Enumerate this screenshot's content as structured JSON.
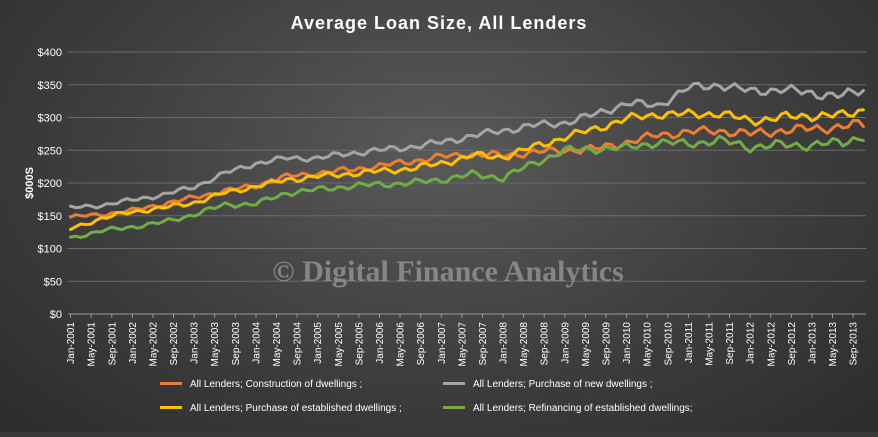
{
  "chart_data": {
    "type": "line",
    "title": "Average Loan Size, All Lenders",
    "ylabel": "$000S",
    "xlabel": "",
    "ylim": [
      0,
      400
    ],
    "y_ticks": [
      "$0",
      "$50",
      "$100",
      "$150",
      "$200",
      "$250",
      "$300",
      "$350",
      "$400"
    ],
    "x_start": "Jan-2001",
    "x_end": "Nov-2013",
    "x_tick_labels": [
      "Jan-2001",
      "May-2001",
      "Sep-2001",
      "Jan-2002",
      "May-2002",
      "Sep-2002",
      "Jan-2003",
      "May-2003",
      "Sep-2003",
      "Jan-2004",
      "May-2004",
      "Sep-2004",
      "Jan-2005",
      "May-2005",
      "Sep-2005",
      "Jan-2006",
      "May-2006",
      "Sep-2006",
      "Jan-2007",
      "May-2007",
      "Sep-2007",
      "Jan-2008",
      "May-2008",
      "Sep-2008",
      "Jan-2009",
      "May-2009",
      "Sep-2009",
      "Jan-2010",
      "May-2010",
      "Sep-2010",
      "Jan-2011",
      "May-2011",
      "Sep-2011",
      "Jan-2012",
      "May-2012",
      "Sep-2012",
      "Jan-2013",
      "May-2013",
      "Sep-2013"
    ],
    "grid": true,
    "legend_position": "bottom",
    "watermark": "© Digital Finance Analytics",
    "series": [
      {
        "name": "All Lenders;  Construction of dwellings ;",
        "color": "#ed7d31",
        "knots": [
          [
            "Jan-2001",
            148
          ],
          [
            "Jul-2001",
            152
          ],
          [
            "Jan-2002",
            158
          ],
          [
            "Jul-2002",
            168
          ],
          [
            "Jan-2003",
            178
          ],
          [
            "Jul-2003",
            188
          ],
          [
            "Jan-2004",
            196
          ],
          [
            "Jul-2004",
            210
          ],
          [
            "Jan-2005",
            215
          ],
          [
            "Jul-2005",
            220
          ],
          [
            "Jan-2006",
            226
          ],
          [
            "Jul-2006",
            233
          ],
          [
            "Jan-2007",
            240
          ],
          [
            "Jul-2007",
            244
          ],
          [
            "Jan-2008",
            242
          ],
          [
            "Jul-2008",
            247
          ],
          [
            "Jan-2009",
            250
          ],
          [
            "Jul-2009",
            252
          ],
          [
            "Jan-2010",
            262
          ],
          [
            "Jul-2010",
            273
          ],
          [
            "Jan-2011",
            278
          ],
          [
            "Jul-2011",
            280
          ],
          [
            "Jan-2012",
            275
          ],
          [
            "Jul-2012",
            280
          ],
          [
            "Jan-2013",
            283
          ],
          [
            "Jul-2013",
            286
          ],
          [
            "Nov-2013",
            290
          ]
        ]
      },
      {
        "name": "All Lenders;  Purchase of new dwellings ;",
        "color": "#a5a5a5",
        "knots": [
          [
            "Jan-2001",
            162
          ],
          [
            "Jul-2001",
            166
          ],
          [
            "Jan-2002",
            174
          ],
          [
            "Jul-2002",
            182
          ],
          [
            "Jan-2003",
            194
          ],
          [
            "Jul-2003",
            215
          ],
          [
            "Jan-2004",
            230
          ],
          [
            "Jul-2004",
            238
          ],
          [
            "Jan-2005",
            238
          ],
          [
            "Jul-2005",
            245
          ],
          [
            "Jan-2006",
            250
          ],
          [
            "Jul-2006",
            255
          ],
          [
            "Jan-2007",
            262
          ],
          [
            "Jul-2007",
            272
          ],
          [
            "Jan-2008",
            280
          ],
          [
            "Jul-2008",
            288
          ],
          [
            "Jan-2009",
            292
          ],
          [
            "Jul-2009",
            305
          ],
          [
            "Jan-2010",
            322
          ],
          [
            "Jul-2010",
            318
          ],
          [
            "Jan-2011",
            345
          ],
          [
            "Jul-2011",
            350
          ],
          [
            "Jan-2012",
            340
          ],
          [
            "Jul-2012",
            343
          ],
          [
            "Jan-2013",
            337
          ],
          [
            "Jul-2013",
            333
          ],
          [
            "Nov-2013",
            342
          ]
        ]
      },
      {
        "name": "All Lenders;  Purchase of established dwellings ;",
        "color": "#ffc000",
        "knots": [
          [
            "Jan-2001",
            130
          ],
          [
            "Jul-2001",
            146
          ],
          [
            "Jan-2002",
            156
          ],
          [
            "Jul-2002",
            162
          ],
          [
            "Jan-2003",
            170
          ],
          [
            "Jul-2003",
            185
          ],
          [
            "Jan-2004",
            195
          ],
          [
            "Jul-2004",
            205
          ],
          [
            "Jan-2005",
            210
          ],
          [
            "Jul-2005",
            214
          ],
          [
            "Jan-2006",
            218
          ],
          [
            "Jul-2006",
            222
          ],
          [
            "Jan-2007",
            230
          ],
          [
            "Jul-2007",
            242
          ],
          [
            "Jan-2008",
            240
          ],
          [
            "Jul-2008",
            255
          ],
          [
            "Jan-2009",
            270
          ],
          [
            "Jul-2009",
            283
          ],
          [
            "Jan-2010",
            298
          ],
          [
            "Jul-2010",
            305
          ],
          [
            "Jan-2011",
            305
          ],
          [
            "Jul-2011",
            306
          ],
          [
            "Jan-2012",
            295
          ],
          [
            "Jul-2012",
            300
          ],
          [
            "Jan-2013",
            303
          ],
          [
            "Jul-2013",
            303
          ],
          [
            "Nov-2013",
            312
          ]
        ]
      },
      {
        "name": "All Lenders;  Refinancing of established dwellings;",
        "color": "#70ad47",
        "knots": [
          [
            "Jan-2001",
            116
          ],
          [
            "Jul-2001",
            127
          ],
          [
            "Jan-2002",
            133
          ],
          [
            "Jul-2002",
            140
          ],
          [
            "Jan-2003",
            152
          ],
          [
            "Jul-2003",
            167
          ],
          [
            "Jan-2004",
            168
          ],
          [
            "Jul-2004",
            185
          ],
          [
            "Jan-2005",
            190
          ],
          [
            "Jul-2005",
            195
          ],
          [
            "Jan-2006",
            198
          ],
          [
            "Jul-2006",
            200
          ],
          [
            "Jan-2007",
            205
          ],
          [
            "Jul-2007",
            213
          ],
          [
            "Jan-2008",
            208
          ],
          [
            "Jul-2008",
            230
          ],
          [
            "Jan-2009",
            250
          ],
          [
            "Jul-2009",
            252
          ],
          [
            "Jan-2010",
            254
          ],
          [
            "Jul-2010",
            262
          ],
          [
            "Jan-2011",
            260
          ],
          [
            "Jul-2011",
            265
          ],
          [
            "Jan-2012",
            255
          ],
          [
            "Jul-2012",
            258
          ],
          [
            "Jan-2013",
            258
          ],
          [
            "Jul-2013",
            262
          ],
          [
            "Nov-2013",
            272
          ]
        ]
      }
    ]
  }
}
